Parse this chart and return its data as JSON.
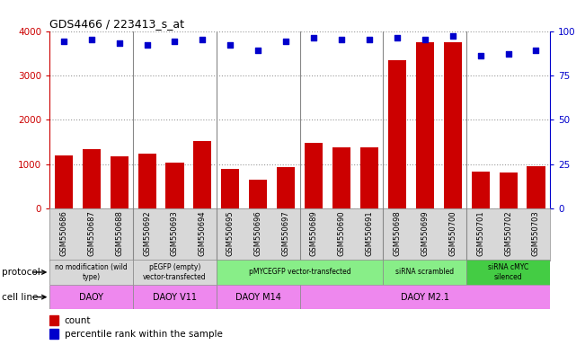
{
  "title": "GDS4466 / 223413_s_at",
  "samples": [
    "GSM550686",
    "GSM550687",
    "GSM550688",
    "GSM550692",
    "GSM550693",
    "GSM550694",
    "GSM550695",
    "GSM550696",
    "GSM550697",
    "GSM550689",
    "GSM550690",
    "GSM550691",
    "GSM550698",
    "GSM550699",
    "GSM550700",
    "GSM550701",
    "GSM550702",
    "GSM550703"
  ],
  "counts": [
    1200,
    1350,
    1170,
    1240,
    1040,
    1530,
    900,
    660,
    940,
    1490,
    1380,
    1380,
    3350,
    3750,
    3750,
    830,
    820,
    950
  ],
  "percentiles": [
    94,
    95,
    93,
    92,
    94,
    95,
    92,
    89,
    94,
    96,
    95,
    95,
    96,
    95,
    97,
    86,
    87,
    89
  ],
  "bar_color": "#cc0000",
  "dot_color": "#0000cc",
  "ylim_left": [
    0,
    4000
  ],
  "ylim_right": [
    0,
    100
  ],
  "yticks_left": [
    0,
    1000,
    2000,
    3000,
    4000
  ],
  "yticks_right": [
    0,
    25,
    50,
    75,
    100
  ],
  "group_separators": [
    3,
    6,
    9,
    12,
    15
  ],
  "protocol_groups": [
    {
      "label": "no modification (wild\ntype)",
      "start": 0,
      "end": 3,
      "color": "#d8d8d8"
    },
    {
      "label": "pEGFP (empty)\nvector-transfected",
      "start": 3,
      "end": 6,
      "color": "#d8d8d8"
    },
    {
      "label": "pMYCEGFP vector-transfected",
      "start": 6,
      "end": 12,
      "color": "#88ee88"
    },
    {
      "label": "siRNA scrambled",
      "start": 12,
      "end": 15,
      "color": "#88ee88"
    },
    {
      "label": "siRNA cMYC\nsilenced",
      "start": 15,
      "end": 18,
      "color": "#44cc44"
    }
  ],
  "cellline_groups": [
    {
      "label": "DAOY",
      "start": 0,
      "end": 3,
      "color": "#ee88ee"
    },
    {
      "label": "DAOY V11",
      "start": 3,
      "end": 6,
      "color": "#ee88ee"
    },
    {
      "label": "DAOY M14",
      "start": 6,
      "end": 9,
      "color": "#ee88ee"
    },
    {
      "label": "DAOY M2.1",
      "start": 9,
      "end": 18,
      "color": "#ee88ee"
    }
  ],
  "protocol_label": "protocol",
  "cellline_label": "cell line",
  "legend_count_label": "count",
  "legend_pct_label": "percentile rank within the sample",
  "tick_label_bg": "#d8d8d8",
  "grid_color": "#999999",
  "separator_color": "#888888"
}
